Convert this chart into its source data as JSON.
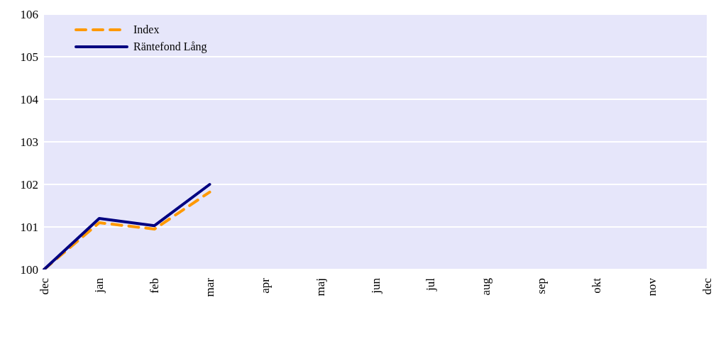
{
  "chart_data": {
    "type": "line",
    "categories": [
      "dec",
      "jan",
      "feb",
      "mar",
      "apr",
      "maj",
      "jun",
      "jul",
      "aug",
      "sep",
      "okt",
      "nov",
      "dec"
    ],
    "series": [
      {
        "name": "Index",
        "color": "#ff9900",
        "line_style": "dashed",
        "values": [
          100,
          101.1,
          100.95,
          101.82,
          null,
          null,
          null,
          null,
          null,
          null,
          null,
          null,
          null
        ]
      },
      {
        "name": "Räntefond Lång",
        "color": "#000080",
        "line_style": "solid",
        "values": [
          100,
          101.2,
          101.03,
          102.0,
          null,
          null,
          null,
          null,
          null,
          null,
          null,
          null,
          null
        ]
      }
    ],
    "ylim": [
      100,
      106
    ],
    "yticks": [
      100,
      101,
      102,
      103,
      104,
      105,
      106
    ],
    "grid": "y",
    "legend": "top left",
    "marker": "none"
  }
}
